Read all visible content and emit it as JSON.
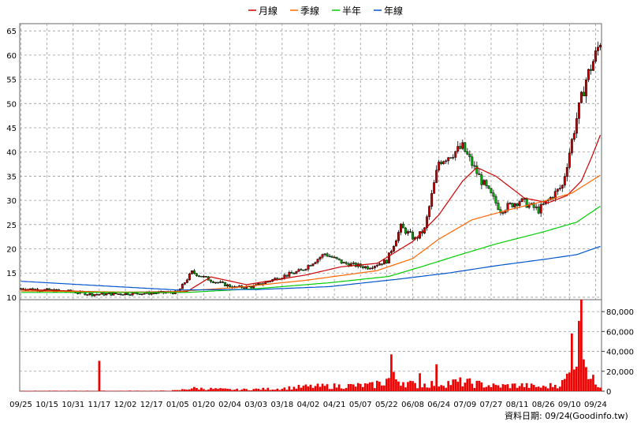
{
  "chart_data": {
    "type": "candlestick",
    "legend": [
      {
        "name": "月線",
        "color": "#cc0000"
      },
      {
        "name": "季線",
        "color": "#ff6600"
      },
      {
        "name": "半年",
        "color": "#00cc00"
      },
      {
        "name": "年線",
        "color": "#0055cc"
      }
    ],
    "price_axis": {
      "ticks": [
        10,
        15,
        20,
        25,
        30,
        35,
        40,
        45,
        50,
        55,
        60,
        65
      ],
      "min": 9.5,
      "max": 66.5
    },
    "volume_axis": {
      "ticks": [
        0,
        20000,
        40000,
        60000,
        80000
      ],
      "tick_labels": [
        "0",
        "20,000",
        "40,000",
        "60,000",
        "80,000"
      ],
      "max": 92000
    },
    "x_axis": {
      "labels": [
        "09/25",
        "10/15",
        "10/31",
        "11/17",
        "12/02",
        "12/17",
        "01/05",
        "01/20",
        "02/04",
        "03/03",
        "03/18",
        "04/02",
        "04/21",
        "05/07",
        "05/22",
        "06/08",
        "06/24",
        "07/09",
        "07/27",
        "08/11",
        "08/26",
        "09/10",
        "09/24"
      ],
      "label_index": [
        0,
        11,
        22,
        33,
        44,
        55,
        66,
        77,
        88,
        99,
        110,
        121,
        132,
        143,
        154,
        165,
        176,
        187,
        198,
        209,
        220,
        231,
        242
      ],
      "count": 245
    },
    "price_anchors": [
      [
        0,
        11.8
      ],
      [
        20,
        11.2
      ],
      [
        30,
        10.6
      ],
      [
        50,
        10.8
      ],
      [
        66,
        11.0
      ],
      [
        72,
        15.2
      ],
      [
        80,
        13.5
      ],
      [
        90,
        12.0
      ],
      [
        98,
        12.2
      ],
      [
        108,
        14.0
      ],
      [
        118,
        15.5
      ],
      [
        128,
        19.0
      ],
      [
        136,
        17.0
      ],
      [
        146,
        16.2
      ],
      [
        154,
        17.5
      ],
      [
        160,
        24.5
      ],
      [
        166,
        22.0
      ],
      [
        170,
        24.0
      ],
      [
        176,
        38.0
      ],
      [
        186,
        41.0
      ],
      [
        194,
        34.0
      ],
      [
        202,
        28.0
      ],
      [
        210,
        30.0
      ],
      [
        218,
        28.0
      ],
      [
        222,
        30.0
      ],
      [
        228,
        33.0
      ],
      [
        234,
        47.0
      ],
      [
        238,
        55.0
      ],
      [
        242,
        60.0
      ],
      [
        244,
        63.0
      ]
    ],
    "volume_anchors": [
      [
        0,
        300
      ],
      [
        60,
        400
      ],
      [
        66,
        800
      ],
      [
        72,
        3000
      ],
      [
        90,
        1500
      ],
      [
        108,
        2500
      ],
      [
        120,
        4500
      ],
      [
        150,
        6000
      ],
      [
        156,
        14000
      ],
      [
        166,
        6000
      ],
      [
        176,
        8000
      ],
      [
        186,
        9000
      ],
      [
        200,
        5000
      ],
      [
        210,
        6000
      ],
      [
        220,
        4000
      ],
      [
        228,
        8000
      ],
      [
        232,
        20000
      ],
      [
        236,
        60000
      ],
      [
        238,
        30000
      ],
      [
        240,
        12000
      ],
      [
        244,
        6000
      ]
    ],
    "volume_spikes": [
      [
        33,
        30500
      ],
      [
        150,
        10500
      ],
      [
        156,
        37000
      ],
      [
        168,
        18000
      ],
      [
        175,
        27000
      ],
      [
        232,
        58000
      ],
      [
        236,
        93000
      ],
      [
        237,
        32000
      ]
    ],
    "moving_averages": {
      "月線": [
        [
          0,
          11.6
        ],
        [
          40,
          11.0
        ],
        [
          70,
          11.2
        ],
        [
          80,
          14.2
        ],
        [
          95,
          12.6
        ],
        [
          120,
          14.6
        ],
        [
          135,
          16.3
        ],
        [
          150,
          17.0
        ],
        [
          165,
          21.5
        ],
        [
          176,
          27.0
        ],
        [
          186,
          34.0
        ],
        [
          192,
          36.8
        ],
        [
          200,
          35.0
        ],
        [
          212,
          30.5
        ],
        [
          222,
          29.5
        ],
        [
          230,
          31.0
        ],
        [
          236,
          34.0
        ],
        [
          240,
          38.5
        ],
        [
          244,
          43.5
        ]
      ],
      "季線": [
        [
          0,
          11.3
        ],
        [
          60,
          11.0
        ],
        [
          90,
          12.0
        ],
        [
          120,
          13.5
        ],
        [
          150,
          15.5
        ],
        [
          165,
          18.0
        ],
        [
          176,
          22.0
        ],
        [
          190,
          26.0
        ],
        [
          205,
          28.0
        ],
        [
          220,
          29.8
        ],
        [
          232,
          31.5
        ],
        [
          244,
          35.2
        ]
      ],
      "半年": [
        [
          0,
          11.0
        ],
        [
          70,
          11.0
        ],
        [
          100,
          11.8
        ],
        [
          130,
          13.0
        ],
        [
          155,
          14.3
        ],
        [
          170,
          16.5
        ],
        [
          185,
          18.8
        ],
        [
          200,
          21.0
        ],
        [
          220,
          23.5
        ],
        [
          234,
          25.5
        ],
        [
          244,
          28.8
        ]
      ],
      "年線": [
        [
          0,
          13.3
        ],
        [
          40,
          12.2
        ],
        [
          66,
          11.5
        ],
        [
          100,
          11.6
        ],
        [
          130,
          12.2
        ],
        [
          160,
          13.8
        ],
        [
          180,
          15.0
        ],
        [
          200,
          16.5
        ],
        [
          220,
          17.8
        ],
        [
          234,
          18.8
        ],
        [
          244,
          20.5
        ]
      ]
    },
    "source": "資料日期: 09/24",
    "watermark": "(Goodinfo.tw)"
  }
}
